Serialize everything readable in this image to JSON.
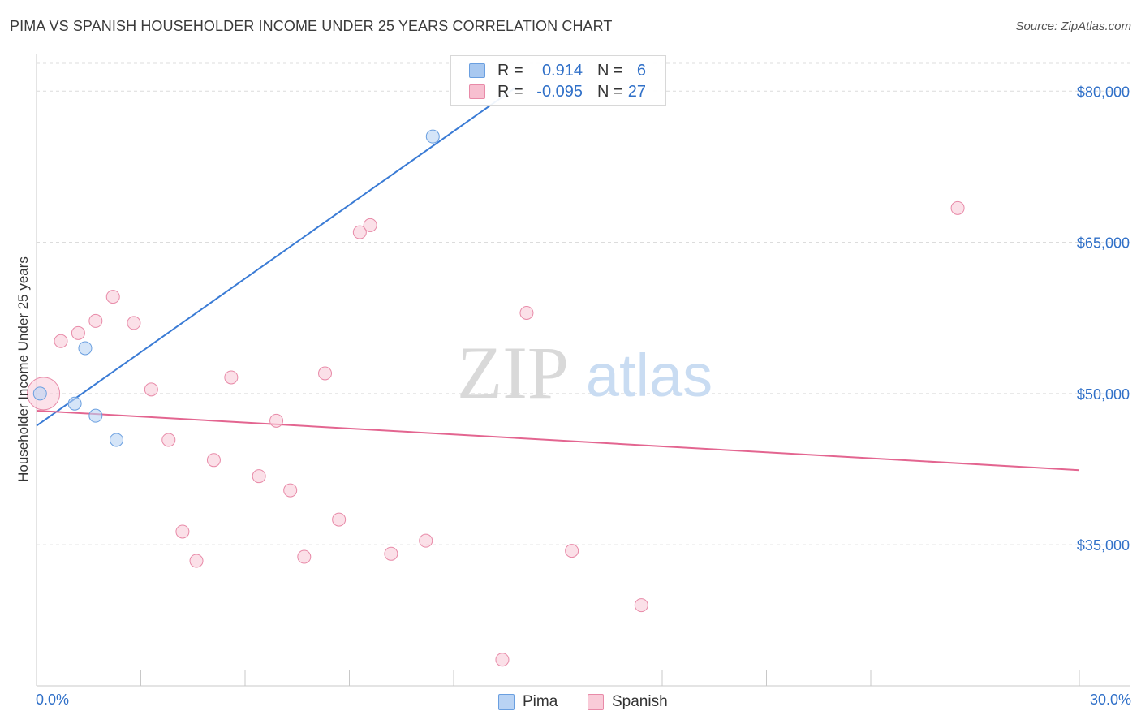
{
  "header": {
    "title": "PIMA VS SPANISH HOUSEHOLDER INCOME UNDER 25 YEARS CORRELATION CHART",
    "source": "Source: ZipAtlas.com"
  },
  "watermark": {
    "zip": "ZIP",
    "atlas": "atlas"
  },
  "legend": {
    "rows": [
      {
        "r_label": "R =",
        "r_value": "0.914",
        "n_label": "N =",
        "n_value": "6",
        "color": "#a8c8f0",
        "border": "#6a9fe0"
      },
      {
        "r_label": "R =",
        "r_value": "-0.095",
        "n_label": "N =",
        "n_value": "27",
        "color": "#f7bfd0",
        "border": "#e88aa8"
      }
    ],
    "bottom": [
      {
        "label": "Pima",
        "color": "#b9d3f4",
        "border": "#6a9fe0"
      },
      {
        "label": "Spanish",
        "color": "#f9cbd8",
        "border": "#e88aa8"
      }
    ]
  },
  "chart_data": {
    "type": "scatter",
    "title": "PIMA VS SPANISH HOUSEHOLDER INCOME UNDER 25 YEARS CORRELATION CHART",
    "xlabel": "",
    "ylabel": "Householder Income Under 25 years",
    "xlim": [
      0,
      30
    ],
    "ylim": [
      21000,
      83000
    ],
    "x_tick_labels": [
      "0.0%",
      "30.0%"
    ],
    "y_ticks": [
      35000,
      50000,
      65000,
      80000
    ],
    "y_tick_labels": [
      "$35,000",
      "$50,000",
      "$65,000",
      "$80,000"
    ],
    "grid": true,
    "series": [
      {
        "name": "Pima",
        "color": "#3a7bd5",
        "fill": "#b9d3f4",
        "stroke": "#6a9fe0",
        "points": [
          {
            "x": 0.1,
            "y": 50000
          },
          {
            "x": 1.4,
            "y": 54500
          },
          {
            "x": 1.1,
            "y": 49000
          },
          {
            "x": 1.7,
            "y": 47800
          },
          {
            "x": 2.3,
            "y": 45400
          },
          {
            "x": 11.4,
            "y": 75500
          }
        ],
        "trend": {
          "x0": 0,
          "y0": 46800,
          "x1": 13.8,
          "y1": 80400
        }
      },
      {
        "name": "Spanish",
        "color": "#e36590",
        "fill": "#f9cbd8",
        "stroke": "#e88aa8",
        "points": [
          {
            "x": 0.2,
            "y": 50000,
            "big": true
          },
          {
            "x": 0.7,
            "y": 55200
          },
          {
            "x": 1.2,
            "y": 56000
          },
          {
            "x": 1.7,
            "y": 57200
          },
          {
            "x": 2.2,
            "y": 59600
          },
          {
            "x": 2.8,
            "y": 57000
          },
          {
            "x": 3.3,
            "y": 50400
          },
          {
            "x": 3.8,
            "y": 45400
          },
          {
            "x": 4.2,
            "y": 36300
          },
          {
            "x": 4.6,
            "y": 33400
          },
          {
            "x": 5.1,
            "y": 43400
          },
          {
            "x": 5.6,
            "y": 51600
          },
          {
            "x": 6.4,
            "y": 41800
          },
          {
            "x": 6.9,
            "y": 47300
          },
          {
            "x": 7.3,
            "y": 40400
          },
          {
            "x": 7.7,
            "y": 33800
          },
          {
            "x": 8.3,
            "y": 52000
          },
          {
            "x": 8.7,
            "y": 37500
          },
          {
            "x": 9.3,
            "y": 66000
          },
          {
            "x": 9.6,
            "y": 66700
          },
          {
            "x": 10.2,
            "y": 34100
          },
          {
            "x": 11.2,
            "y": 35400
          },
          {
            "x": 13.4,
            "y": 23600
          },
          {
            "x": 14.1,
            "y": 58000
          },
          {
            "x": 15.4,
            "y": 34400
          },
          {
            "x": 17.4,
            "y": 29000
          },
          {
            "x": 26.5,
            "y": 68400
          }
        ],
        "trend": {
          "x0": 0,
          "y0": 48300,
          "x1": 30,
          "y1": 42400
        }
      }
    ]
  }
}
